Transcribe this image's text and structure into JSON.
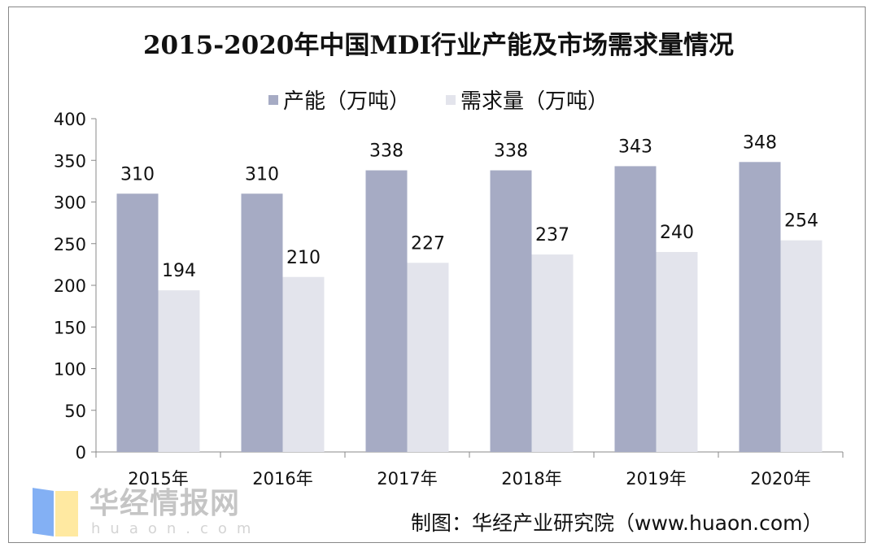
{
  "chart_data": {
    "type": "bar",
    "title": "2015-2020年中国MDI行业产能及市场需求量情况",
    "categories": [
      "2015年",
      "2016年",
      "2017年",
      "2018年",
      "2019年",
      "2020年"
    ],
    "series": [
      {
        "name": "产能（万吨）",
        "values": [
          310,
          310,
          338,
          338,
          343,
          348
        ],
        "color": "#a6abc4"
      },
      {
        "name": "需求量（万吨）",
        "values": [
          194,
          210,
          227,
          237,
          240,
          254
        ],
        "color": "#e3e4ec"
      }
    ],
    "yticks": [
      0,
      50,
      100,
      150,
      200,
      250,
      300,
      350,
      400
    ],
    "ylim": [
      0,
      400
    ],
    "xlabel": "",
    "ylabel": "",
    "grid": false,
    "legend": "top"
  },
  "source": "制图：华经产业研究院（www.huaon.com）",
  "watermark": {
    "text": "华经情报网",
    "sub": "huaon.com"
  }
}
